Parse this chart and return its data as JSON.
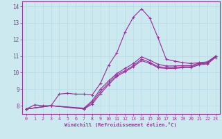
{
  "bg_color": "#cce9f0",
  "line_color": "#993399",
  "grid_color": "#b8dde8",
  "xlabel": "Windchill (Refroidissement éolien,°C)",
  "xlabel_color": "#993399",
  "tick_color": "#993399",
  "xlim": [
    -0.5,
    23.5
  ],
  "ylim": [
    7.5,
    14.3
  ],
  "yticks": [
    8,
    9,
    10,
    11,
    12,
    13,
    14
  ],
  "xticks": [
    0,
    1,
    2,
    3,
    4,
    5,
    6,
    7,
    8,
    9,
    10,
    11,
    12,
    13,
    14,
    15,
    16,
    17,
    18,
    19,
    20,
    21,
    22,
    23
  ],
  "curves": [
    {
      "x": [
        0,
        1,
        2,
        3,
        4,
        5,
        6,
        7,
        8,
        9,
        10,
        11,
        12,
        13,
        14,
        15,
        16,
        17,
        18,
        19,
        20,
        21,
        22,
        23
      ],
      "y": [
        7.8,
        8.05,
        8.0,
        8.0,
        8.7,
        8.75,
        8.7,
        8.7,
        8.65,
        9.35,
        10.45,
        11.2,
        12.45,
        13.35,
        13.85,
        13.3,
        12.1,
        10.8,
        10.7,
        10.6,
        10.55,
        10.6,
        10.65,
        11.0
      ]
    },
    {
      "x": [
        0,
        3,
        7,
        8,
        9,
        10,
        11,
        12,
        13,
        14,
        15,
        16,
        17,
        18,
        19,
        20,
        21,
        22,
        23
      ],
      "y": [
        7.8,
        8.0,
        7.85,
        8.3,
        9.0,
        9.5,
        9.95,
        10.25,
        10.55,
        10.95,
        10.75,
        10.5,
        10.4,
        10.4,
        10.42,
        10.42,
        10.58,
        10.62,
        11.0
      ]
    },
    {
      "x": [
        0,
        3,
        7,
        8,
        9,
        10,
        11,
        12,
        13,
        14,
        15,
        16,
        17,
        18,
        19,
        20,
        21,
        22,
        23
      ],
      "y": [
        7.8,
        8.0,
        7.82,
        8.2,
        8.85,
        9.38,
        9.87,
        10.12,
        10.42,
        10.82,
        10.62,
        10.36,
        10.3,
        10.3,
        10.35,
        10.35,
        10.52,
        10.57,
        10.97
      ]
    },
    {
      "x": [
        0,
        3,
        7,
        8,
        9,
        10,
        11,
        12,
        13,
        14,
        15,
        16,
        17,
        18,
        19,
        20,
        21,
        22,
        23
      ],
      "y": [
        7.8,
        8.0,
        7.8,
        8.1,
        8.72,
        9.28,
        9.78,
        10.05,
        10.35,
        10.72,
        10.55,
        10.3,
        10.25,
        10.25,
        10.3,
        10.3,
        10.47,
        10.52,
        10.92
      ]
    }
  ]
}
